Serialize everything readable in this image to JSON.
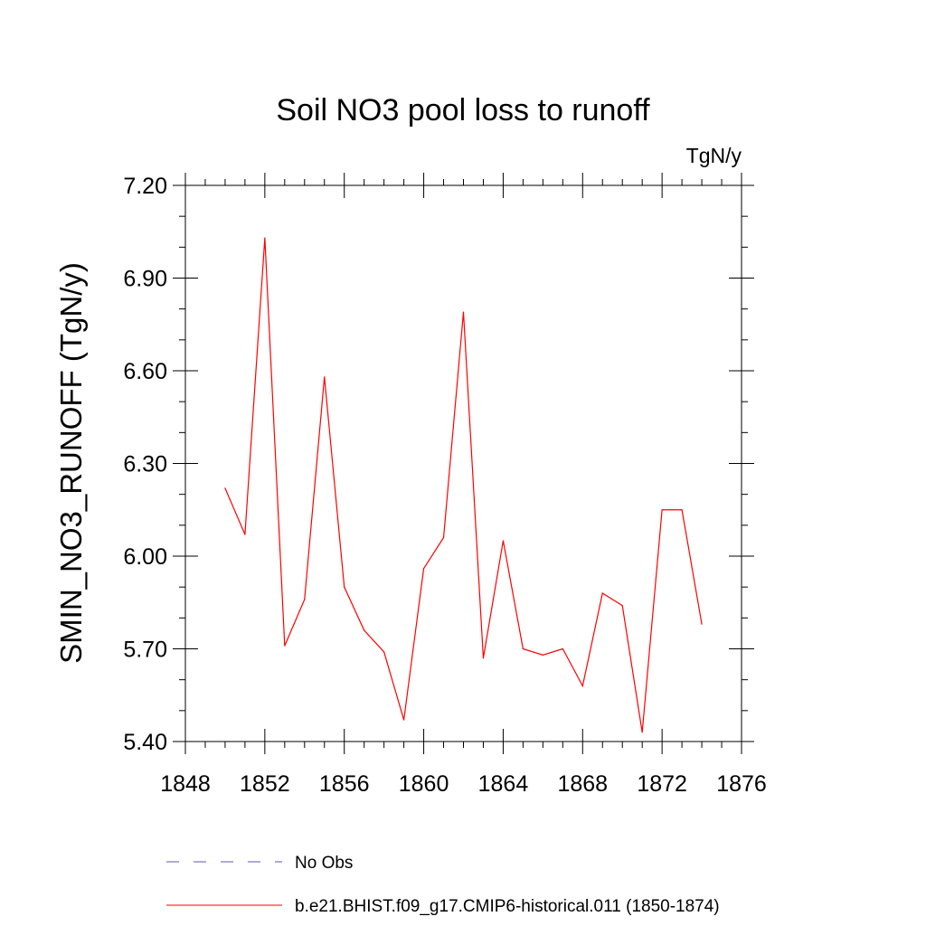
{
  "chart_data": {
    "type": "line",
    "title": "Soil NO3 pool loss to runoff",
    "units": "TgN/y",
    "xlabel": "",
    "ylabel": "SMIN_NO3_RUNOFF  (TgN/y)",
    "xlim": [
      1848,
      1876
    ],
    "ylim": [
      5.4,
      7.2
    ],
    "x_ticks": [
      1848,
      1852,
      1856,
      1860,
      1864,
      1868,
      1872,
      1876
    ],
    "x_tick_labels": [
      "1848",
      "1852",
      "1856",
      "1860",
      "1864",
      "1868",
      "1872",
      "1876"
    ],
    "y_ticks": [
      5.4,
      5.7,
      6.0,
      6.3,
      6.6,
      6.9,
      7.2
    ],
    "y_tick_labels": [
      "5.40",
      "5.70",
      "6.00",
      "6.30",
      "6.60",
      "6.90",
      "7.20"
    ],
    "x_minor_step": 1,
    "y_minor_step": 0.1,
    "grid": false,
    "legend_position": "bottom",
    "series": [
      {
        "name": "b.e21.BHIST.f09_g17.CMIP6-historical.011 (1850-1874)",
        "color": "#ff0000",
        "style": "solid",
        "x": [
          1850,
          1851,
          1852,
          1853,
          1854,
          1855,
          1856,
          1857,
          1858,
          1859,
          1860,
          1861,
          1862,
          1863,
          1864,
          1865,
          1866,
          1867,
          1868,
          1869,
          1870,
          1871,
          1872,
          1873,
          1874
        ],
        "values": [
          6.22,
          6.07,
          7.03,
          5.71,
          5.86,
          6.58,
          5.9,
          5.76,
          5.69,
          5.47,
          5.96,
          6.06,
          6.79,
          5.67,
          6.05,
          5.7,
          5.68,
          5.7,
          5.58,
          5.88,
          5.84,
          5.43,
          6.15,
          6.15,
          5.78
        ]
      },
      {
        "name": "No Obs",
        "color": "#5a5aa8",
        "style": "dashed",
        "x": [],
        "values": []
      }
    ]
  }
}
